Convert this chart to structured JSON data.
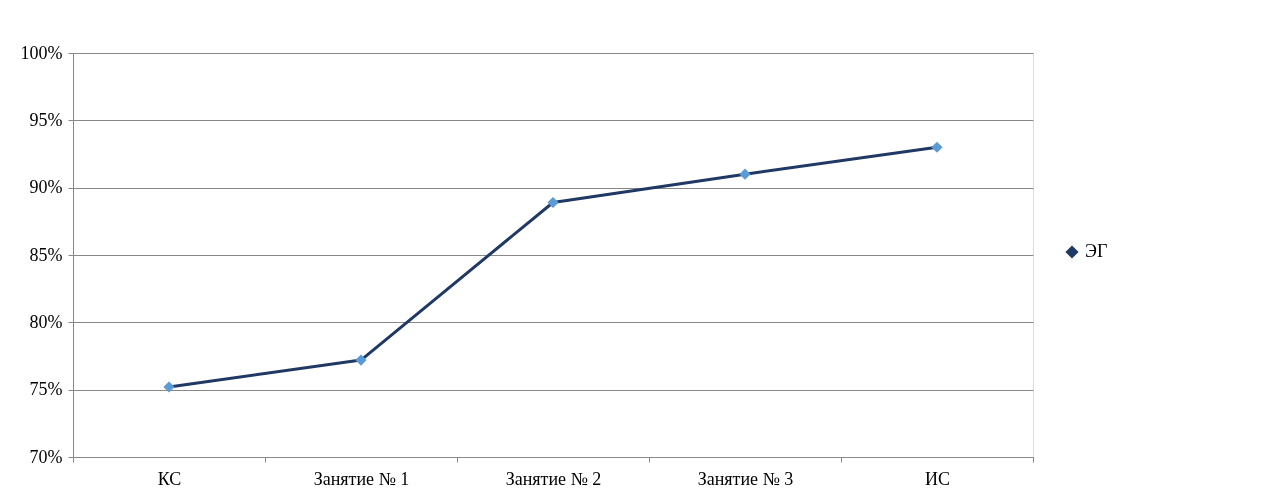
{
  "chart_data": {
    "type": "line",
    "categories": [
      "КС",
      "Занятие № 1",
      "Занятие № 2",
      "Занятие № 3",
      "ИС"
    ],
    "series": [
      {
        "name": "ЭГ",
        "color": "#1f3864",
        "values": [
          75.2,
          77.2,
          88.9,
          91.0,
          93.0
        ]
      }
    ],
    "ylim": [
      70,
      100
    ],
    "yticks": [
      {
        "value": 70,
        "label": "70%"
      },
      {
        "value": 75,
        "label": "75%"
      },
      {
        "value": 80,
        "label": "80%"
      },
      {
        "value": 85,
        "label": "85%"
      },
      {
        "value": 90,
        "label": "90%"
      },
      {
        "value": 95,
        "label": "95%"
      },
      {
        "value": 100,
        "label": "100%"
      }
    ],
    "grid": "y",
    "legend": "right",
    "marker": "diamond",
    "line_style": "solid"
  }
}
